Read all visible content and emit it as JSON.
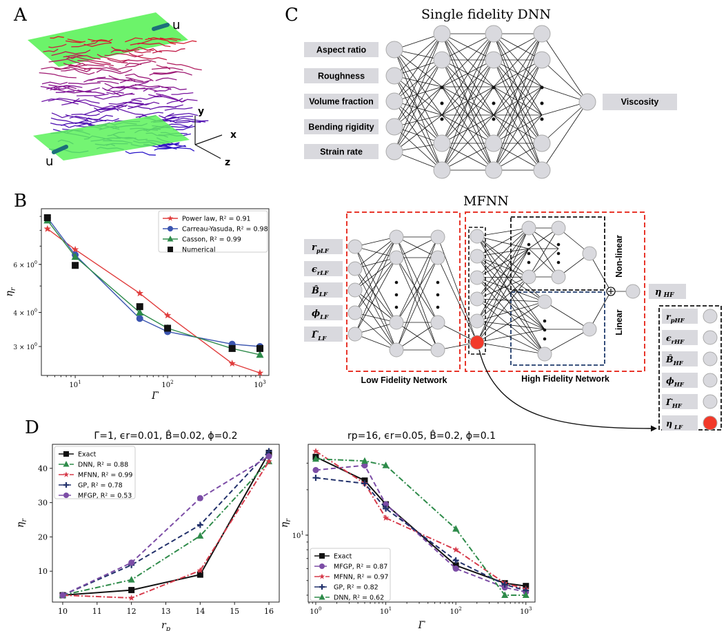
{
  "panels": {
    "A": {
      "letter": "A",
      "u_top": "u",
      "u_bottom": "u",
      "axis_x": "x",
      "axis_y": "y",
      "axis_z": "z"
    },
    "B": {
      "letter": "B"
    },
    "C": {
      "letter": "C",
      "sf_title": "Single fidelity DNN",
      "sf_inputs": [
        "Aspect ratio",
        "Roughness",
        "Volume fraction",
        "Bending rigidity",
        "Strain rate"
      ],
      "sf_output": "Viscosity",
      "mf_title": "MFNN",
      "lf_inputs": [
        "r",
        "ϵ",
        "B̂",
        "ϕ",
        "Γ̇"
      ],
      "lf_sub": [
        "pLF",
        "rLF",
        "LF",
        "LF",
        "LF"
      ],
      "hf_inputs": [
        "r",
        "ϵ",
        "B̂",
        "ϕ",
        "Γ̇",
        "η"
      ],
      "hf_sub": [
        "pHF",
        "rHF",
        "HF",
        "HF",
        "HF",
        " LF"
      ],
      "mf_output": "η",
      "mf_output_sub": " HF",
      "label_lf": "Low Fidelity Network",
      "label_hf": "High Fidelity Network",
      "label_nonlinear": "Non-linear",
      "label_linear": "Linear",
      "colors": {
        "lf_box": "#e8352a",
        "nl_box": "#111111",
        "lin_box": "#1f3a6b",
        "red_node": "#f23a2a",
        "node": "#d9d9de"
      }
    },
    "D": {
      "letter": "D"
    }
  },
  "chart_data": [
    {
      "id": "B",
      "type": "line",
      "xscale": "log",
      "yscale": "log",
      "xlabel": "Γ̇",
      "ylabel": "η",
      "ylabel_sub": "r",
      "xlim": [
        4.3,
        1250
      ],
      "ylim": [
        2.35,
        9.6
      ],
      "xticks": [
        {
          "v": 10,
          "b": "10",
          "e": "1"
        },
        {
          "v": 100,
          "b": "10",
          "e": "2"
        },
        {
          "v": 1000,
          "b": "10",
          "e": "3"
        }
      ],
      "yticks": [
        {
          "v": 3,
          "b": "3 × 10",
          "e": "0"
        },
        {
          "v": 4,
          "b": "4 × 10",
          "e": "0"
        },
        {
          "v": 6,
          "b": "6 × 10",
          "e": "0"
        }
      ],
      "legend_position": "top-right",
      "series": [
        {
          "name": "Power law, R² = 0.91",
          "color": "#e03c3c",
          "marker": "star",
          "dash": "",
          "x": [
            5,
            10,
            50,
            100,
            500,
            1000
          ],
          "y": [
            8.1,
            6.8,
            4.7,
            3.9,
            2.6,
            2.4
          ]
        },
        {
          "name": "Carreau-Yasuda, R² = 0.98",
          "color": "#3b55b0",
          "marker": "circle",
          "dash": "",
          "x": [
            5,
            10,
            50,
            100,
            500,
            1000
          ],
          "y": [
            8.9,
            6.5,
            3.8,
            3.4,
            3.06,
            3.0
          ]
        },
        {
          "name": "Casson, R² = 0.99",
          "color": "#2e8b4a",
          "marker": "triangle",
          "dash": "",
          "x": [
            5,
            10,
            50,
            100,
            500,
            1000
          ],
          "y": [
            8.7,
            6.4,
            4.0,
            3.5,
            2.95,
            2.8
          ]
        },
        {
          "name": "Numerical",
          "color": "#111111",
          "marker": "square",
          "dash": "none",
          "x": [
            5,
            10,
            50,
            100,
            500,
            1000
          ],
          "y": [
            8.9,
            5.95,
            4.2,
            3.5,
            2.95,
            2.95
          ]
        }
      ]
    },
    {
      "id": "D1",
      "type": "line",
      "title": "Γ̇=1, ϵr=0.01, B̂=0.02, ϕ=0.2",
      "xlabel": "r",
      "xlabel_sub": "p",
      "ylabel": "η",
      "ylabel_sub": "r",
      "xlim": [
        9.7,
        16.3
      ],
      "ylim": [
        1,
        47
      ],
      "xticks": [
        10,
        11,
        12,
        13,
        14,
        15,
        16
      ],
      "yticks": [
        10,
        20,
        30,
        40
      ],
      "legend_position": "top-left",
      "series": [
        {
          "name": "Exact",
          "color": "#111111",
          "marker": "square",
          "dash": "",
          "x": [
            10,
            12,
            14,
            16
          ],
          "y": [
            3,
            4.5,
            9,
            44.5
          ]
        },
        {
          "name": "DNN, R² = 0.88",
          "color": "#2e8b4a",
          "marker": "triangle",
          "dash": "8,3,2,3",
          "x": [
            10,
            12,
            14,
            16
          ],
          "y": [
            3,
            7.5,
            20.3,
            42
          ]
        },
        {
          "name": "MFNN, R² = 0.99",
          "color": "#d63a4a",
          "marker": "star",
          "dash": "8,3,2,3",
          "x": [
            10,
            12,
            14,
            16
          ],
          "y": [
            3,
            2.2,
            10.2,
            42
          ]
        },
        {
          "name": "GP, R² = 0.78",
          "color": "#22316b",
          "marker": "plus",
          "dash": "7,4",
          "x": [
            10,
            12,
            14,
            16
          ],
          "y": [
            3,
            11.8,
            23.5,
            45
          ]
        },
        {
          "name": "MFGP, R² = 0.53",
          "color": "#7c4da6",
          "marker": "circle",
          "dash": "7,4",
          "x": [
            10,
            12,
            14,
            16
          ],
          "y": [
            3,
            12.5,
            31.3,
            43.5
          ]
        }
      ]
    },
    {
      "id": "D2",
      "type": "line",
      "title": "rp=16, ϵr=0.05, B̂=0.2, ϕ=0.1",
      "xscale": "log",
      "yscale": "log",
      "xlabel": "Γ̇",
      "ylabel": "η",
      "ylabel_sub": "r",
      "xlim": [
        0.78,
        1350
      ],
      "ylim": [
        3.6,
        40
      ],
      "xticks": [
        {
          "v": 1,
          "b": "10",
          "e": "0"
        },
        {
          "v": 10,
          "b": "10",
          "e": "1"
        },
        {
          "v": 100,
          "b": "10",
          "e": "2"
        },
        {
          "v": 1000,
          "b": "10",
          "e": "3"
        }
      ],
      "yticks": [
        {
          "v": 10,
          "b": "10",
          "e": "1"
        }
      ],
      "legend_position": "bottom-left",
      "series": [
        {
          "name": "Exact",
          "color": "#111111",
          "marker": "square",
          "dash": "",
          "x": [
            1,
            5,
            10,
            100,
            500,
            1000
          ],
          "y": [
            33,
            23,
            16,
            6.3,
            4.8,
            4.6
          ]
        },
        {
          "name": "MFGP, R² = 0.87",
          "color": "#7c4da6",
          "marker": "circle",
          "dash": "7,4",
          "x": [
            1,
            5,
            10,
            100,
            500,
            1000
          ],
          "y": [
            27,
            29,
            16,
            6,
            4.5,
            4.2
          ]
        },
        {
          "name": "MFNN, R² = 0.97",
          "color": "#d63a4a",
          "marker": "star",
          "dash": "8,3,2,3",
          "x": [
            1,
            5,
            10,
            100,
            500,
            1000
          ],
          "y": [
            36,
            22,
            13,
            8,
            4.8,
            4.4
          ]
        },
        {
          "name": "GP, R² = 0.82",
          "color": "#22316b",
          "marker": "plus",
          "dash": "7,4",
          "x": [
            1,
            5,
            10,
            100,
            500,
            1000
          ],
          "y": [
            24,
            22,
            15,
            6.8,
            4.7,
            4.3
          ]
        },
        {
          "name": "DNN, R² = 0.62",
          "color": "#2e8b4a",
          "marker": "triangle",
          "dash": "8,3,2,3",
          "x": [
            1,
            5,
            10,
            100,
            500,
            1000
          ],
          "y": [
            32,
            31,
            29,
            11,
            4,
            4
          ]
        }
      ]
    }
  ]
}
